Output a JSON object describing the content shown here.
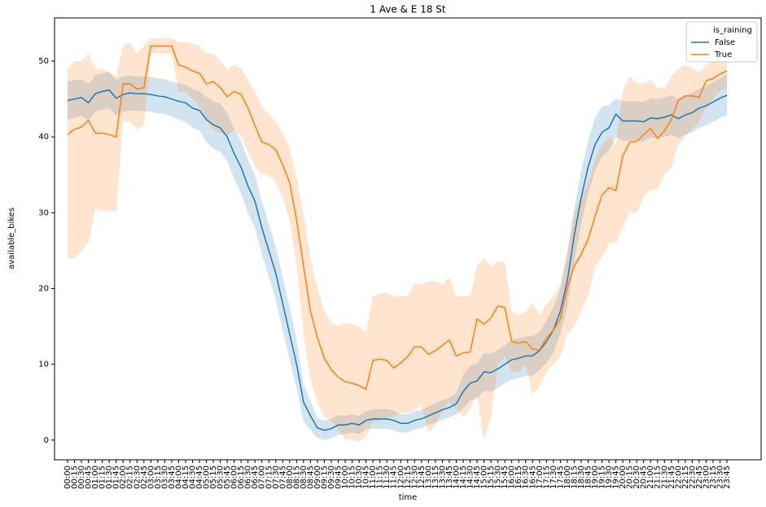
{
  "chart_data": {
    "type": "line",
    "title": "1 Ave & E 18 St",
    "x_label": "time",
    "y_label": "available_bikes",
    "legend_title": "is_raining",
    "legend": "upper right",
    "categories": [
      "00:00",
      "00:15",
      "00:30",
      "00:45",
      "01:00",
      "01:15",
      "01:30",
      "01:45",
      "02:00",
      "02:15",
      "02:30",
      "02:45",
      "03:00",
      "03:15",
      "03:30",
      "03:45",
      "04:00",
      "04:15",
      "04:30",
      "04:45",
      "05:00",
      "05:15",
      "05:30",
      "05:45",
      "06:00",
      "06:15",
      "06:30",
      "06:45",
      "07:00",
      "07:15",
      "07:30",
      "07:45",
      "08:00",
      "08:15",
      "08:30",
      "08:45",
      "09:00",
      "09:15",
      "09:30",
      "09:45",
      "10:00",
      "10:15",
      "10:30",
      "10:45",
      "11:00",
      "11:15",
      "11:30",
      "11:45",
      "12:00",
      "12:15",
      "12:30",
      "12:45",
      "13:00",
      "13:15",
      "13:30",
      "13:45",
      "14:00",
      "14:15",
      "14:30",
      "14:45",
      "15:00",
      "15:15",
      "15:30",
      "15:45",
      "16:00",
      "16:15",
      "16:30",
      "16:45",
      "17:00",
      "17:15",
      "17:30",
      "17:45",
      "18:00",
      "18:15",
      "18:30",
      "18:45",
      "19:00",
      "19:15",
      "19:30",
      "19:45",
      "20:00",
      "20:15",
      "20:30",
      "20:45",
      "21:00",
      "21:15",
      "21:30",
      "21:45",
      "22:00",
      "22:15",
      "22:30",
      "22:45",
      "23:00",
      "23:15",
      "23:30",
      "23:45"
    ],
    "series": [
      {
        "name": "False",
        "color": "#1f77b4",
        "values": [
          44.8,
          45.0,
          45.2,
          44.5,
          45.7,
          46.0,
          46.2,
          45.1,
          45.6,
          45.8,
          45.7,
          45.7,
          45.6,
          45.4,
          45.3,
          45.0,
          44.7,
          44.5,
          43.8,
          43.5,
          42.3,
          41.6,
          41.2,
          40.0,
          37.8,
          36.0,
          33.5,
          31.5,
          28.0,
          25.0,
          22.0,
          18.0,
          14.0,
          10.0,
          5.0,
          3.2,
          1.6,
          1.3,
          1.5,
          2.0,
          2.0,
          2.2,
          2.0,
          2.6,
          2.8,
          2.8,
          2.8,
          2.6,
          2.2,
          2.2,
          2.6,
          2.8,
          3.2,
          3.6,
          4.0,
          4.3,
          4.8,
          6.4,
          7.5,
          7.8,
          9.0,
          8.9,
          9.4,
          10.0,
          10.6,
          10.8,
          11.1,
          11.1,
          11.8,
          13.0,
          14.5,
          17.0,
          21.0,
          27.0,
          32.0,
          36.0,
          39.0,
          40.6,
          41.2,
          43.0,
          42.1,
          42.1,
          42.1,
          42.0,
          42.5,
          42.4,
          42.6,
          42.9,
          42.4,
          42.9,
          43.2,
          43.8,
          44.1,
          44.6,
          45.1,
          45.5
        ],
        "ci_lower": [
          42.3,
          42.5,
          42.8,
          42.2,
          43.3,
          43.6,
          43.8,
          42.8,
          43.3,
          43.5,
          43.4,
          43.4,
          43.3,
          43.1,
          43.0,
          42.7,
          42.3,
          42.0,
          41.2,
          40.8,
          39.3,
          38.5,
          38.0,
          36.8,
          34.5,
          32.5,
          30.0,
          28.0,
          24.5,
          21.5,
          18.5,
          14.5,
          10.5,
          6.8,
          2.5,
          1.3,
          0.3,
          0.0,
          0.2,
          0.7,
          0.8,
          1.0,
          0.8,
          1.4,
          1.5,
          1.5,
          1.5,
          1.3,
          1.0,
          1.0,
          1.4,
          1.6,
          2.0,
          2.3,
          2.7,
          3.0,
          3.4,
          4.2,
          5.2,
          5.5,
          6.5,
          6.4,
          6.9,
          7.5,
          8.0,
          8.2,
          8.5,
          8.5,
          9.3,
          10.2,
          11.5,
          14.0,
          17.5,
          23.5,
          28.5,
          32.5,
          35.5,
          37.4,
          38.2,
          40.0,
          39.5,
          39.5,
          39.5,
          39.4,
          39.9,
          39.8,
          40.0,
          40.3,
          39.8,
          40.3,
          40.6,
          41.2,
          41.5,
          42.0,
          42.5,
          42.8
        ],
        "ci_upper": [
          47.3,
          47.5,
          47.6,
          47.0,
          48.1,
          48.4,
          48.6,
          47.5,
          48.0,
          48.1,
          48.0,
          48.0,
          47.9,
          47.7,
          47.6,
          47.3,
          47.1,
          46.9,
          46.3,
          46.0,
          45.3,
          44.7,
          44.4,
          43.2,
          41.1,
          39.5,
          37.0,
          35.0,
          31.5,
          28.5,
          25.5,
          21.5,
          17.5,
          13.2,
          7.5,
          5.1,
          2.9,
          2.6,
          2.8,
          3.3,
          3.2,
          3.4,
          3.2,
          3.8,
          4.1,
          4.1,
          4.1,
          3.9,
          3.4,
          3.4,
          3.8,
          4.0,
          4.4,
          4.9,
          5.3,
          5.6,
          6.2,
          8.6,
          9.8,
          10.1,
          11.5,
          11.4,
          11.9,
          12.5,
          13.2,
          13.4,
          13.7,
          13.7,
          14.3,
          15.8,
          17.5,
          20.0,
          24.5,
          30.5,
          35.5,
          39.5,
          42.5,
          44.0,
          44.2,
          45.0,
          44.7,
          44.7,
          44.7,
          44.6,
          45.1,
          45.0,
          45.2,
          45.5,
          45.0,
          45.5,
          45.8,
          46.4,
          46.7,
          47.2,
          47.7,
          48.2
        ]
      },
      {
        "name": "True",
        "color": "#ff7f0e",
        "values": [
          40.3,
          41.0,
          41.3,
          42.2,
          40.5,
          40.5,
          40.3,
          40.0,
          47.0,
          47.0,
          46.3,
          46.5,
          52.0,
          52.0,
          52.0,
          52.0,
          49.5,
          49.2,
          48.7,
          48.4,
          47.0,
          47.3,
          46.5,
          45.3,
          46.0,
          45.6,
          43.8,
          41.5,
          39.3,
          39.0,
          38.3,
          36.3,
          34.0,
          29.0,
          23.0,
          17.0,
          13.5,
          10.8,
          9.3,
          8.3,
          7.7,
          7.5,
          7.2,
          6.7,
          10.5,
          10.7,
          10.5,
          9.5,
          10.2,
          11.0,
          12.3,
          12.3,
          11.3,
          11.8,
          12.5,
          13.2,
          11.1,
          11.5,
          11.6,
          16.0,
          15.3,
          16.1,
          17.7,
          17.5,
          13.0,
          12.8,
          13.0,
          12.0,
          11.9,
          13.5,
          14.5,
          16.0,
          20.0,
          23.0,
          24.5,
          26.5,
          29.5,
          32.3,
          33.3,
          32.9,
          37.5,
          39.3,
          39.4,
          40.3,
          41.1,
          39.8,
          40.8,
          42.3,
          44.8,
          45.4,
          45.4,
          45.2,
          47.4,
          47.7,
          48.3,
          48.7
        ],
        "ci_lower": [
          24,
          24,
          25,
          26,
          30.5,
          30.3,
          30.2,
          30.2,
          42,
          42,
          41,
          41.5,
          51,
          51,
          51,
          51,
          46,
          46,
          45,
          44,
          42,
          41,
          40.5,
          40,
          41,
          40,
          38,
          36,
          35,
          35,
          34,
          32,
          29,
          23,
          14,
          8,
          5,
          3,
          2.5,
          1.5,
          0,
          0,
          -0.2,
          0.5,
          2.5,
          2.5,
          3,
          3,
          3.5,
          3.5,
          4,
          4.5,
          1,
          2,
          4,
          5,
          4,
          3,
          4,
          6,
          0,
          3,
          10,
          11,
          9,
          9,
          10,
          6,
          7,
          9,
          10,
          11,
          14,
          15,
          17,
          19,
          23,
          24,
          26,
          26,
          28,
          30,
          30,
          32,
          33,
          33,
          35,
          36,
          39,
          40,
          41,
          42,
          44,
          45,
          46,
          46.5
        ],
        "ci_upper": [
          49,
          50,
          50,
          51,
          49,
          49,
          48.5,
          48,
          52,
          52.5,
          51,
          52,
          53,
          53,
          53,
          53,
          52.5,
          52.5,
          52.3,
          52,
          51,
          51,
          50,
          49,
          49.5,
          49,
          47.5,
          46,
          44,
          43,
          42,
          40.5,
          38.5,
          34.5,
          30,
          24,
          20,
          17,
          15.5,
          15,
          15.5,
          15.3,
          15,
          14.3,
          19,
          19.3,
          19.5,
          19,
          19,
          19,
          20.7,
          20.5,
          21,
          21,
          20.5,
          21.5,
          19,
          19,
          19,
          23,
          24,
          23,
          23.5,
          23.5,
          17,
          16.5,
          17,
          18,
          16.5,
          18,
          19,
          20.5,
          25,
          30,
          32,
          34,
          37,
          39,
          40,
          39,
          46,
          48,
          47,
          47,
          47.5,
          46.5,
          46.5,
          48,
          49,
          49.5,
          49,
          48.5,
          49.5,
          50,
          50,
          50
        ]
      }
    ],
    "ylim": [
      -2.6,
      55.7
    ],
    "yticks": [
      0,
      10,
      20,
      30,
      40,
      50
    ]
  }
}
